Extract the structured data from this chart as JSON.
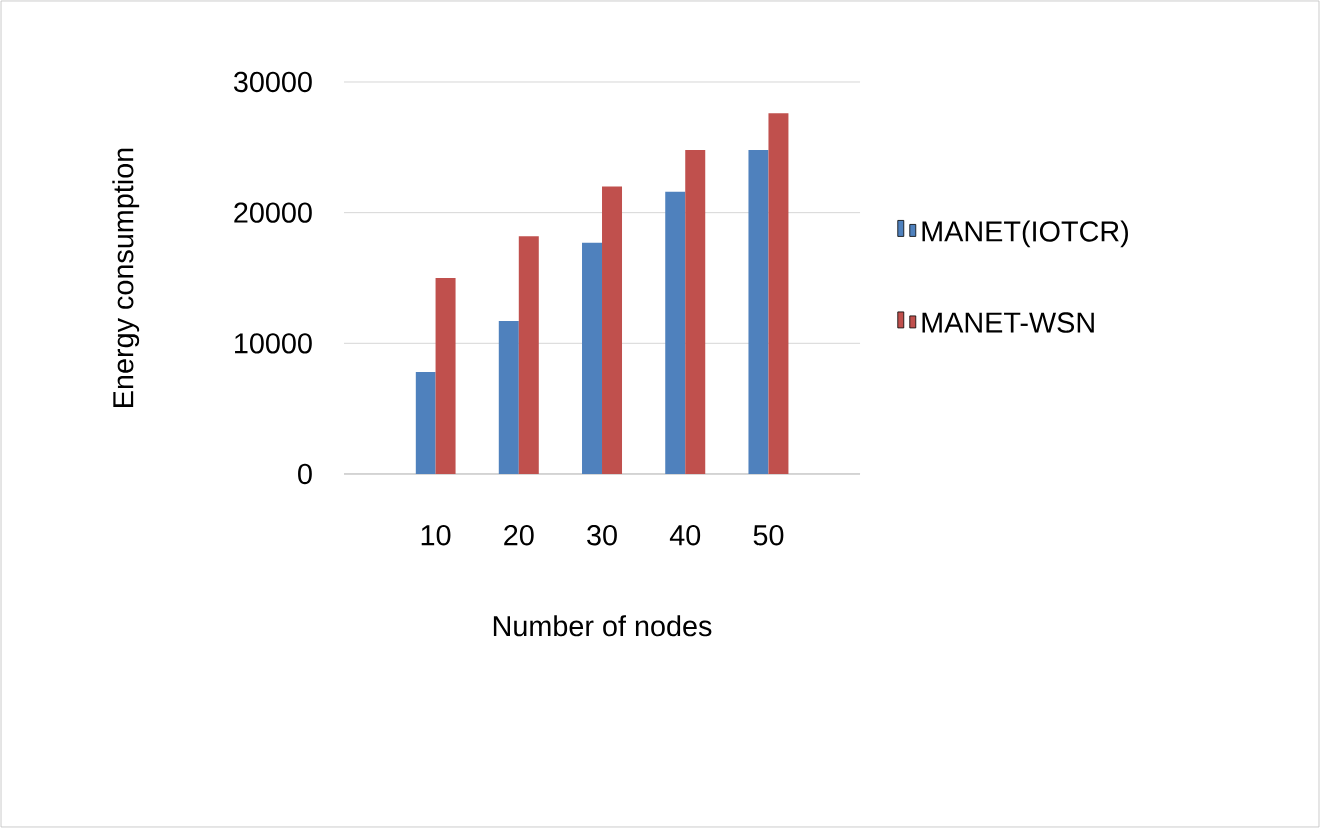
{
  "chart_data": {
    "type": "bar",
    "xlabel": "Number of nodes",
    "ylabel": "Energy consumption",
    "categories": [
      "10",
      "20",
      "30",
      "40",
      "50"
    ],
    "series": [
      {
        "name": "MANET(IOTCR)",
        "color": "#4f81bd",
        "values": [
          7800,
          11700,
          17700,
          21600,
          24800
        ]
      },
      {
        "name": "MANET-WSN",
        "color": "#c0504d",
        "values": [
          15000,
          18200,
          22000,
          24800,
          27600
        ]
      }
    ],
    "ylim": [
      0,
      30000
    ],
    "yticks": [
      0,
      10000,
      20000,
      30000
    ],
    "grid": "y",
    "legend": "right"
  }
}
